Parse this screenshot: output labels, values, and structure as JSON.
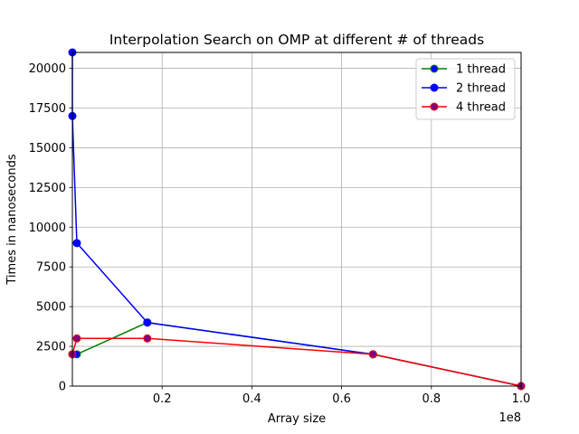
{
  "chart_data": {
    "type": "line",
    "title": "Interpolation Search on OMP at different # of threads",
    "xlabel": "Array size",
    "ylabel": "Times in nanoseconds",
    "x_offset_label": "1e8",
    "xlim": [
      0,
      100000000
    ],
    "ylim": [
      0,
      21000
    ],
    "x_ticks": [
      {
        "value": 20000000,
        "label": "0.2"
      },
      {
        "value": 40000000,
        "label": "0.4"
      },
      {
        "value": 60000000,
        "label": "0.6"
      },
      {
        "value": 80000000,
        "label": "0.8"
      },
      {
        "value": 100000000,
        "label": "1.0"
      }
    ],
    "y_ticks": [
      {
        "value": 0,
        "label": "0"
      },
      {
        "value": 2500,
        "label": "2500"
      },
      {
        "value": 5000,
        "label": "5000"
      },
      {
        "value": 7500,
        "label": "7500"
      },
      {
        "value": 10000,
        "label": "10000"
      },
      {
        "value": 12500,
        "label": "12500"
      },
      {
        "value": 15000,
        "label": "15000"
      },
      {
        "value": 17500,
        "label": "17500"
      },
      {
        "value": 20000,
        "label": "20000"
      }
    ],
    "grid": true,
    "legend_position": "top-right",
    "series": [
      {
        "name": "1 thread",
        "color": "#008000",
        "marker_face": "#0000ff",
        "x": [
          0,
          1000000,
          16700000,
          67000000,
          100000000
        ],
        "y": [
          2000,
          2000,
          4000,
          2000,
          0
        ]
      },
      {
        "name": "2 thread",
        "color": "#0000ff",
        "marker_face": "#0000ff",
        "x": [
          0,
          0,
          1000000,
          16700000,
          67000000,
          100000000
        ],
        "y": [
          21000,
          17000,
          9000,
          4000,
          2000,
          0
        ]
      },
      {
        "name": "4 thread",
        "color": "#ff0000",
        "marker_face": "#800080",
        "x": [
          0,
          1000000,
          16700000,
          67000000,
          100000000
        ],
        "y": [
          2000,
          3000,
          3000,
          2000,
          0
        ]
      }
    ]
  }
}
